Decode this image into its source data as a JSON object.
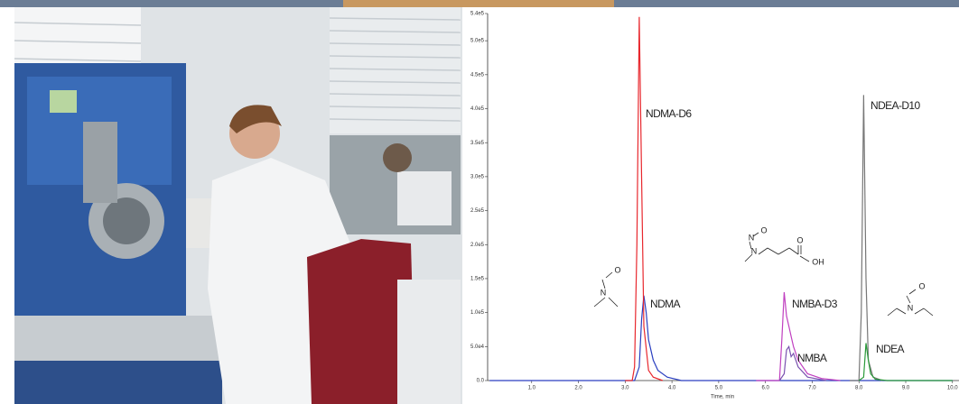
{
  "chart_data": {
    "type": "line",
    "xlabel": "Time, min",
    "xlim": [
      0,
      10.0
    ],
    "ylim": [
      0,
      540000
    ],
    "xticks": [
      {
        "value": 1,
        "label": "1.0"
      },
      {
        "value": 2,
        "label": "2.0"
      },
      {
        "value": 3,
        "label": "3.0"
      },
      {
        "value": 4,
        "label": "4.0"
      },
      {
        "value": 5,
        "label": "5.0"
      },
      {
        "value": 6,
        "label": "6.0"
      },
      {
        "value": 7,
        "label": "7.0"
      },
      {
        "value": 8,
        "label": "8.0"
      },
      {
        "value": 9,
        "label": "9.0"
      },
      {
        "value": 10,
        "label": "10.0"
      }
    ],
    "yticks": [
      {
        "value": 0,
        "label": "0.0"
      },
      {
        "value": 50000,
        "label": "5.0e4"
      },
      {
        "value": 100000,
        "label": "1.0e5"
      },
      {
        "value": 150000,
        "label": "1.5e5"
      },
      {
        "value": 200000,
        "label": "2.0e5"
      },
      {
        "value": 250000,
        "label": "2.5e5"
      },
      {
        "value": 300000,
        "label": "3.0e5"
      },
      {
        "value": 350000,
        "label": "3.5e5"
      },
      {
        "value": 400000,
        "label": "4.0e5"
      },
      {
        "value": 450000,
        "label": "4.5e5"
      },
      {
        "value": 500000,
        "label": "5.0e5"
      },
      {
        "value": 540000,
        "label": "5.4e5"
      }
    ],
    "series": [
      {
        "name": "NDMA",
        "color": "#2a3fc0",
        "x": [
          0.1,
          3.2,
          3.3,
          3.35,
          3.4,
          3.45,
          3.5,
          3.6,
          3.7,
          3.9,
          4.2,
          10
        ],
        "values": [
          0,
          0,
          20000,
          90000,
          125000,
          100000,
          60000,
          30000,
          15000,
          5000,
          0,
          0
        ]
      },
      {
        "name": "NDMA-D6",
        "color": "#e8282e",
        "x": [
          3.0,
          3.15,
          3.2,
          3.25,
          3.3,
          3.35,
          3.4,
          3.5,
          3.6,
          3.8
        ],
        "values": [
          0,
          0,
          20000,
          200000,
          535000,
          300000,
          80000,
          15000,
          5000,
          0
        ]
      },
      {
        "name": "NMBA-D3",
        "color": "#c040c0",
        "x": [
          5.8,
          6.3,
          6.35,
          6.4,
          6.45,
          6.5,
          6.55,
          6.6,
          6.7,
          6.9,
          7.2,
          7.6
        ],
        "values": [
          0,
          0,
          60000,
          130000,
          95000,
          80000,
          65000,
          50000,
          30000,
          10000,
          3000,
          0
        ]
      },
      {
        "name": "NMBA",
        "color": "#7a52b0",
        "x": [
          6.3,
          6.4,
          6.45,
          6.5,
          6.55,
          6.6,
          6.7,
          6.9,
          7.3
        ],
        "values": [
          0,
          10000,
          45000,
          50000,
          35000,
          40000,
          20000,
          5000,
          0
        ]
      },
      {
        "name": "NDEA-D10",
        "color": "#777777",
        "x": [
          7.8,
          8.0,
          8.05,
          8.1,
          8.15,
          8.2,
          8.3,
          8.5
        ],
        "values": [
          0,
          0,
          100000,
          420000,
          150000,
          30000,
          5000,
          0
        ]
      },
      {
        "name": "NDEA",
        "color": "#2a9a3a",
        "x": [
          8.0,
          8.1,
          8.15,
          8.2,
          8.25,
          8.35,
          8.6,
          10
        ],
        "values": [
          0,
          5000,
          55000,
          30000,
          10000,
          2000,
          0,
          0
        ]
      }
    ],
    "structures": [
      {
        "atoms": [
          "N",
          "O",
          "N"
        ]
      },
      {
        "atoms": [
          "N",
          "O",
          "N",
          "O",
          "OH"
        ]
      },
      {
        "atoms": [
          "N",
          "O",
          "N"
        ]
      }
    ]
  }
}
